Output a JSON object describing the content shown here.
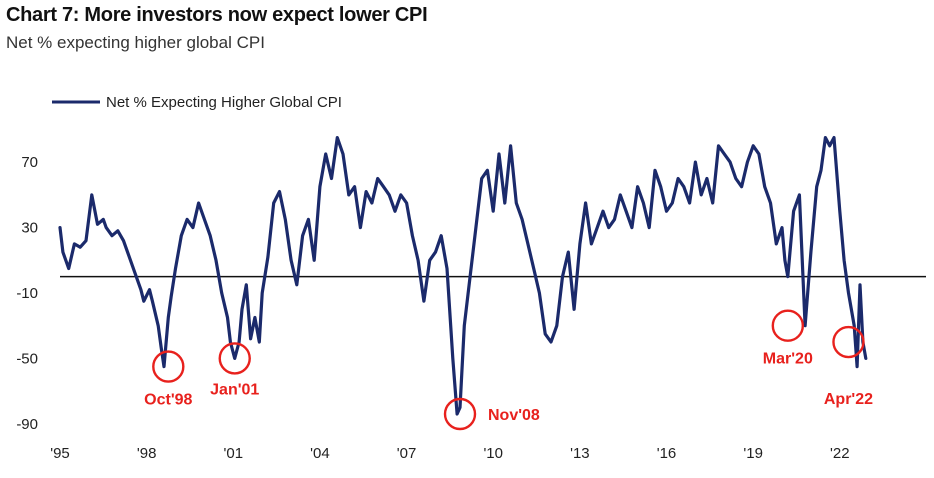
{
  "header": {
    "title": "Chart 7: More investors now expect lower CPI",
    "subtitle": "Net % expecting higher global CPI"
  },
  "chart_data": {
    "type": "line",
    "title": "Chart 7: More investors now expect lower CPI",
    "subtitle": "Net % expecting higher global CPI",
    "xlabel": "",
    "ylabel": "",
    "xlim": [
      1995.0,
      2025.0
    ],
    "ylim": [
      -95,
      110
    ],
    "x_ticks": [
      "'95",
      "'98",
      "'01",
      "'04",
      "'07",
      "'10",
      "'13",
      "'16",
      "'19",
      "'22"
    ],
    "x_tick_values": [
      1995,
      1998,
      2001,
      2004,
      2007,
      2010,
      2013,
      2016,
      2019,
      2022
    ],
    "y_ticks": [
      "70",
      "30",
      "-10",
      "-50",
      "-90"
    ],
    "y_tick_values": [
      70,
      30,
      -10,
      -50,
      -90
    ],
    "reference_line": 0,
    "grid": false,
    "legend": {
      "position": "top-left",
      "entries": [
        "Net % Expecting Higher Global CPI"
      ]
    },
    "series": [
      {
        "name": "Net % Expecting Higher Global CPI",
        "color": "#1b2a6b",
        "x": [
          1995.0,
          1995.1,
          1995.3,
          1995.5,
          1995.7,
          1995.9,
          1996.1,
          1996.3,
          1996.5,
          1996.6,
          1996.8,
          1997.0,
          1997.2,
          1997.4,
          1997.6,
          1997.8,
          1997.9,
          1998.1,
          1998.2,
          1998.4,
          1998.5,
          1998.6,
          1998.75,
          1998.85,
          1999.0,
          1999.2,
          1999.4,
          1999.6,
          1999.8,
          2000.0,
          2000.2,
          2000.4,
          2000.6,
          2000.8,
          2000.9,
          2001.05,
          2001.2,
          2001.3,
          2001.45,
          2001.6,
          2001.75,
          2001.9,
          2002.0,
          2002.2,
          2002.4,
          2002.6,
          2002.8,
          2003.0,
          2003.2,
          2003.4,
          2003.6,
          2003.8,
          2004.0,
          2004.2,
          2004.4,
          2004.6,
          2004.8,
          2005.0,
          2005.2,
          2005.4,
          2005.6,
          2005.8,
          2006.0,
          2006.2,
          2006.4,
          2006.6,
          2006.8,
          2007.0,
          2007.2,
          2007.4,
          2007.6,
          2007.8,
          2008.0,
          2008.2,
          2008.4,
          2008.6,
          2008.75,
          2008.85,
          2009.0,
          2009.2,
          2009.4,
          2009.6,
          2009.8,
          2010.0,
          2010.2,
          2010.4,
          2010.6,
          2010.8,
          2011.0,
          2011.2,
          2011.4,
          2011.6,
          2011.8,
          2012.0,
          2012.2,
          2012.4,
          2012.6,
          2012.8,
          2013.0,
          2013.2,
          2013.4,
          2013.6,
          2013.8,
          2014.0,
          2014.2,
          2014.4,
          2014.6,
          2014.8,
          2015.0,
          2015.2,
          2015.4,
          2015.6,
          2015.8,
          2016.0,
          2016.2,
          2016.4,
          2016.6,
          2016.8,
          2017.0,
          2017.2,
          2017.4,
          2017.6,
          2017.8,
          2018.0,
          2018.2,
          2018.4,
          2018.6,
          2018.8,
          2019.0,
          2019.2,
          2019.4,
          2019.6,
          2019.8,
          2020.0,
          2020.1,
          2020.2,
          2020.4,
          2020.6,
          2020.8,
          2021.0,
          2021.2,
          2021.35,
          2021.5,
          2021.65,
          2021.8,
          2022.0,
          2022.15,
          2022.3,
          2022.5,
          2022.6,
          2022.7,
          2022.8,
          2022.9
        ],
        "y": [
          30,
          15,
          5,
          20,
          18,
          22,
          50,
          32,
          35,
          30,
          25,
          28,
          22,
          12,
          2,
          -8,
          -15,
          -8,
          -15,
          -30,
          -43,
          -55,
          -25,
          -12,
          5,
          25,
          35,
          30,
          45,
          35,
          25,
          10,
          -10,
          -25,
          -40,
          -50,
          -40,
          -20,
          -5,
          -38,
          -25,
          -40,
          -10,
          12,
          45,
          52,
          35,
          10,
          -5,
          25,
          35,
          10,
          55,
          75,
          60,
          85,
          75,
          50,
          55,
          30,
          52,
          45,
          60,
          55,
          50,
          40,
          50,
          45,
          25,
          10,
          -15,
          10,
          15,
          25,
          5,
          -50,
          -84,
          -80,
          -30,
          0,
          30,
          60,
          65,
          40,
          75,
          45,
          80,
          45,
          35,
          20,
          5,
          -10,
          -35,
          -40,
          -30,
          0,
          15,
          -20,
          20,
          45,
          20,
          30,
          40,
          30,
          35,
          50,
          40,
          30,
          55,
          45,
          30,
          65,
          55,
          40,
          45,
          60,
          55,
          45,
          70,
          50,
          60,
          45,
          80,
          75,
          70,
          60,
          55,
          70,
          80,
          75,
          55,
          45,
          20,
          30,
          10,
          0,
          40,
          50,
          -30,
          15,
          55,
          65,
          85,
          80,
          85,
          40,
          10,
          -10,
          -30,
          -55,
          -5,
          -40,
          -50
        ]
      }
    ],
    "annotations": [
      {
        "label": "Oct'98",
        "x": 1998.75,
        "y": -55
      },
      {
        "label": "Jan'01",
        "x": 2001.05,
        "y": -50
      },
      {
        "label": "Nov'08",
        "x": 2008.85,
        "y": -84
      },
      {
        "label": "Mar'20",
        "x": 2020.2,
        "y": -30
      },
      {
        "label": "Apr'22",
        "x": 2022.3,
        "y": -40
      }
    ]
  }
}
